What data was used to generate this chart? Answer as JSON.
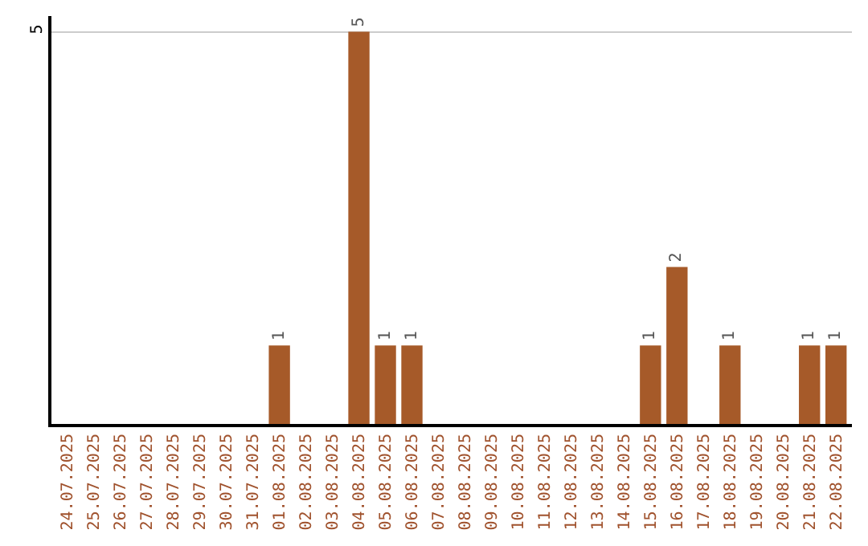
{
  "chart_data": {
    "type": "bar",
    "categories": [
      "24.07.2025",
      "25.07.2025",
      "26.07.2025",
      "27.07.2025",
      "28.07.2025",
      "29.07.2025",
      "30.07.2025",
      "31.07.2025",
      "01.08.2025",
      "02.08.2025",
      "03.08.2025",
      "04.08.2025",
      "05.08.2025",
      "06.08.2025",
      "07.08.2025",
      "08.08.2025",
      "09.08.2025",
      "10.08.2025",
      "11.08.2025",
      "12.08.2025",
      "13.08.2025",
      "14.08.2025",
      "15.08.2025",
      "16.08.2025",
      "17.08.2025",
      "18.08.2025",
      "19.08.2025",
      "20.08.2025",
      "21.08.2025",
      "22.08.2025"
    ],
    "values": [
      0,
      0,
      0,
      0,
      0,
      0,
      0,
      0,
      1,
      0,
      0,
      5,
      1,
      1,
      0,
      0,
      0,
      0,
      0,
      0,
      0,
      0,
      1,
      2,
      0,
      1,
      0,
      0,
      1,
      1
    ],
    "value_labels": [
      null,
      null,
      null,
      null,
      null,
      null,
      null,
      null,
      "1",
      null,
      null,
      "5",
      "1",
      "1",
      null,
      null,
      null,
      null,
      null,
      null,
      null,
      null,
      "1",
      "2",
      null,
      "1",
      null,
      null,
      "1",
      "1"
    ],
    "color": "#a65a29",
    "ylim": [
      0,
      5.2
    ],
    "yticks": [
      5
    ],
    "grid": "y"
  }
}
